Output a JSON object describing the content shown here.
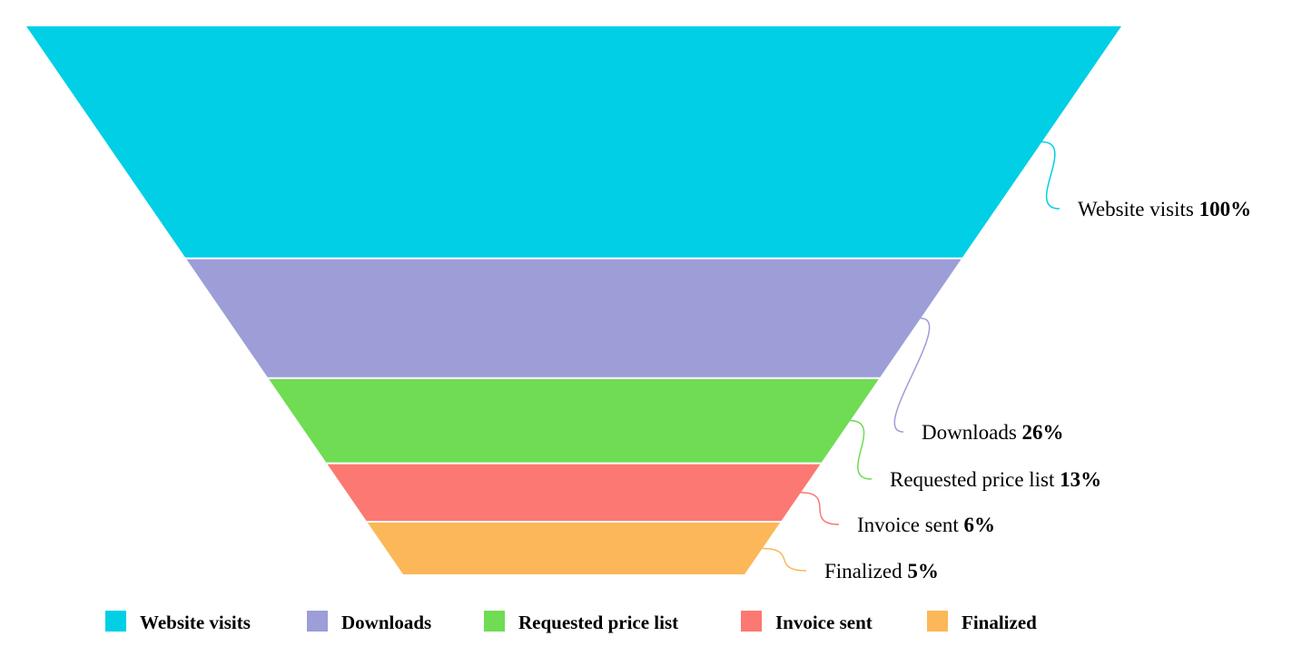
{
  "chart_data": {
    "type": "funnel",
    "series": [
      {
        "name": "Website visits",
        "percent": 100,
        "color": "#00cfe6"
      },
      {
        "name": "Downloads",
        "percent": 26,
        "color": "#9d9dd8"
      },
      {
        "name": "Requested price list",
        "percent": 13,
        "color": "#6fdc54"
      },
      {
        "name": "Invoice sent",
        "percent": 6,
        "color": "#fc7872"
      },
      {
        "name": "Finalized",
        "percent": 5,
        "color": "#fbb758"
      }
    ],
    "unit": "%",
    "legend_position": "bottom"
  }
}
